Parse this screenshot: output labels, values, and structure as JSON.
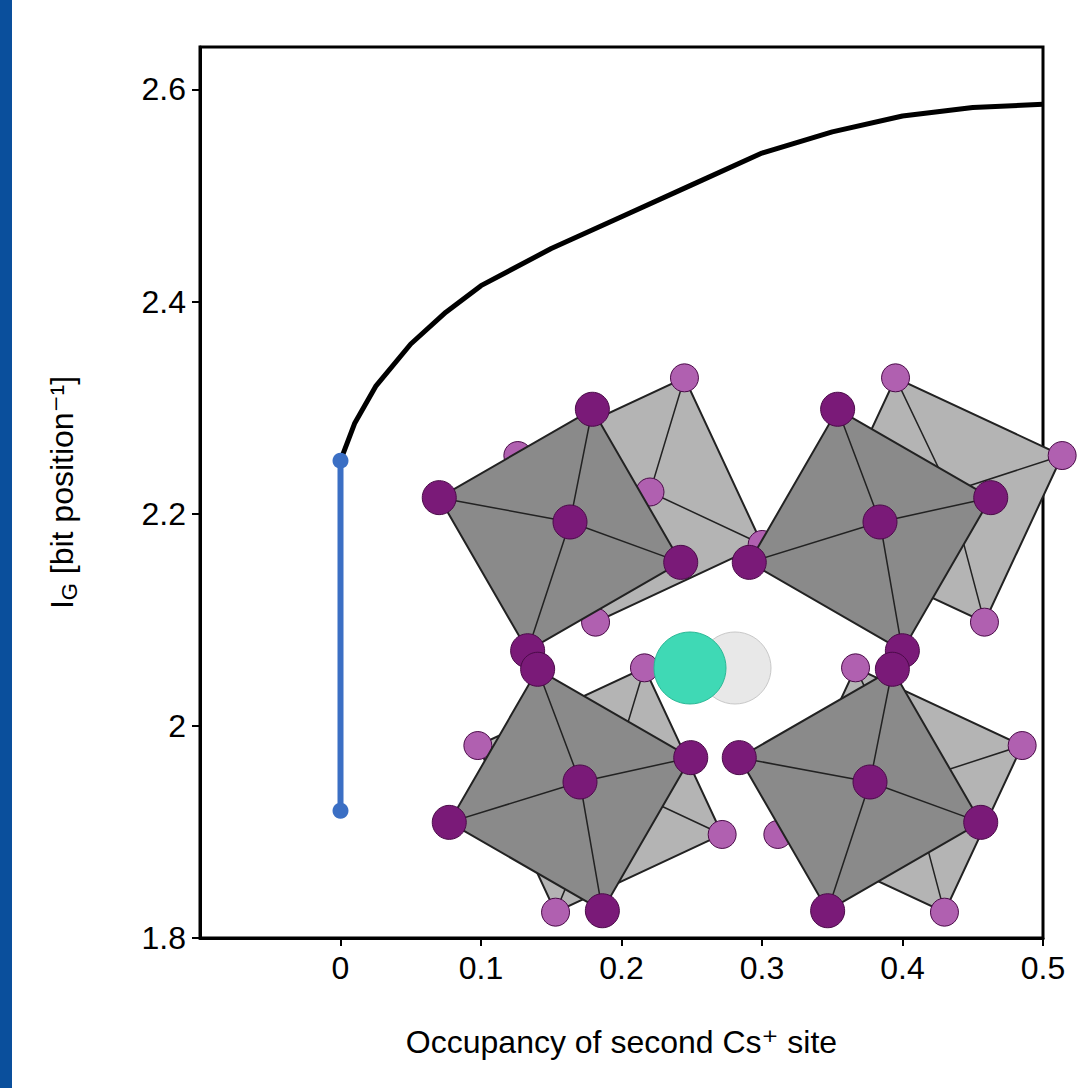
{
  "chart_data": {
    "type": "line",
    "x_label": "Occupancy of second Cs⁺ site",
    "y_label": "IG [bit position⁻¹]",
    "xlim": [
      -0.1,
      0.5
    ],
    "xticks": [
      0,
      0.1,
      0.2,
      0.3,
      0.4,
      0.5
    ],
    "ylim": [
      1.8,
      2.64
    ],
    "yticks": [
      1.8,
      2,
      2.2,
      2.4,
      2.6
    ],
    "grid": false,
    "series": [
      {
        "color": "#000000",
        "marker": "none",
        "line_style": "solid",
        "x": [
          0,
          0.01,
          0.025,
          0.05,
          0.075,
          0.1,
          0.15,
          0.2,
          0.25,
          0.3,
          0.35,
          0.4,
          0.45,
          0.5
        ],
        "values": [
          2.25,
          2.285,
          2.32,
          2.36,
          2.39,
          2.415,
          2.45,
          2.48,
          2.51,
          2.54,
          2.56,
          2.575,
          2.583,
          2.586
        ]
      },
      {
        "color": "#3b6fc4",
        "marker": "circle",
        "line_style": "solid",
        "x": [
          0,
          0
        ],
        "values": [
          1.92,
          2.25
        ]
      }
    ]
  }
}
